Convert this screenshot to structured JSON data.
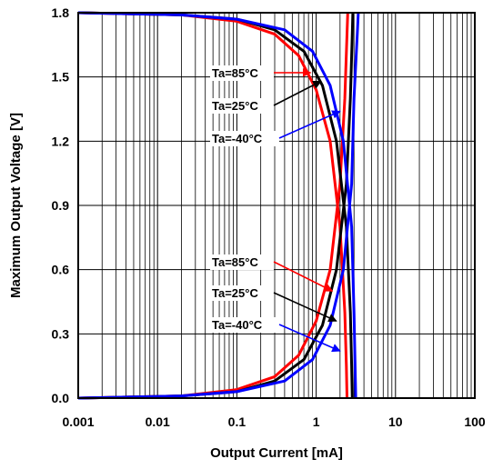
{
  "chart_data": {
    "type": "line",
    "title": "",
    "xlabel": "Output Current [mA]",
    "ylabel": "Maximum Output Voltage [V]",
    "xscale": "log",
    "xlim": [
      0.001,
      100
    ],
    "ylim": [
      0,
      1.8
    ],
    "x_tick_labels": [
      "0.001",
      "0.01",
      "0.1",
      "1",
      "10",
      "100"
    ],
    "y_tick_labels": [
      "0.0",
      "0.3",
      "0.6",
      "0.9",
      "1.2",
      "1.5",
      "1.8"
    ],
    "grid": true,
    "legend": "none",
    "series": [
      {
        "name": "Ta=85°C",
        "color": "#ff0000",
        "high_side": {
          "x": [
            0.001,
            0.02,
            0.1,
            0.3,
            0.6,
            1.0,
            1.5,
            2.0,
            2.3,
            2.4,
            2.45
          ],
          "y": [
            1.8,
            1.79,
            1.76,
            1.7,
            1.6,
            1.44,
            1.2,
            0.8,
            0.4,
            0.15,
            0.0
          ]
        },
        "low_side": {
          "x": [
            0.001,
            0.02,
            0.1,
            0.3,
            0.6,
            1.0,
            1.5,
            2.0,
            2.3,
            2.45,
            2.5
          ],
          "y": [
            0.0,
            0.01,
            0.04,
            0.1,
            0.2,
            0.36,
            0.6,
            1.0,
            1.4,
            1.7,
            1.8
          ]
        }
      },
      {
        "name": "Ta=25°C",
        "color": "#000000",
        "high_side": {
          "x": [
            0.001,
            0.02,
            0.1,
            0.3,
            0.7,
            1.2,
            1.8,
            2.4,
            2.7,
            2.8,
            2.85
          ],
          "y": [
            1.8,
            1.79,
            1.77,
            1.72,
            1.62,
            1.46,
            1.2,
            0.8,
            0.4,
            0.15,
            0.0
          ]
        },
        "low_side": {
          "x": [
            0.001,
            0.02,
            0.1,
            0.3,
            0.7,
            1.2,
            1.8,
            2.4,
            2.7,
            2.85,
            2.9
          ],
          "y": [
            0.0,
            0.01,
            0.03,
            0.08,
            0.18,
            0.34,
            0.6,
            1.0,
            1.4,
            1.7,
            1.8
          ]
        }
      },
      {
        "name": "Ta=-40°C",
        "color": "#0000ff",
        "high_side": {
          "x": [
            0.001,
            0.02,
            0.1,
            0.4,
            0.9,
            1.5,
            2.2,
            2.8,
            3.0,
            3.1,
            3.15
          ],
          "y": [
            1.8,
            1.79,
            1.77,
            1.72,
            1.62,
            1.46,
            1.2,
            0.8,
            0.4,
            0.15,
            0.0
          ]
        },
        "low_side": {
          "x": [
            0.001,
            0.02,
            0.1,
            0.4,
            0.9,
            1.5,
            2.2,
            2.8,
            3.0,
            3.3,
            3.4
          ],
          "y": [
            0.0,
            0.01,
            0.03,
            0.08,
            0.18,
            0.34,
            0.6,
            1.0,
            1.4,
            1.7,
            1.8
          ]
        }
      }
    ],
    "annotations": [
      {
        "text": "Ta=85°C",
        "series": 0,
        "group": "upper",
        "target_x": 0.85,
        "target_y": 1.52
      },
      {
        "text": "Ta=25°C",
        "series": 1,
        "group": "upper",
        "target_x": 1.15,
        "target_y": 1.48
      },
      {
        "text": "Ta=-40°C",
        "series": 2,
        "group": "upper",
        "target_x": 2.0,
        "target_y": 1.34
      },
      {
        "text": "Ta=85°C",
        "series": 0,
        "group": "lower",
        "target_x": 1.6,
        "target_y": 0.5
      },
      {
        "text": "Ta=25°C",
        "series": 1,
        "group": "lower",
        "target_x": 1.8,
        "target_y": 0.36
      },
      {
        "text": "Ta=-40°C",
        "series": 2,
        "group": "lower",
        "target_x": 2.0,
        "target_y": 0.22
      }
    ]
  }
}
